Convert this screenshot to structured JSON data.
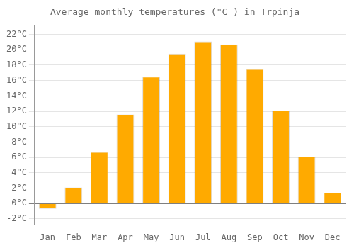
{
  "chart_data": {
    "type": "bar",
    "title": "Average monthly temperatures (°C ) in Trpinja",
    "categories": [
      "Jan",
      "Feb",
      "Mar",
      "Apr",
      "May",
      "Jun",
      "Jul",
      "Aug",
      "Sep",
      "Oct",
      "Nov",
      "Dec"
    ],
    "values": [
      -0.7,
      2.1,
      6.7,
      11.6,
      16.5,
      19.5,
      21.1,
      20.7,
      17.5,
      12.1,
      6.1,
      1.4
    ],
    "color": "#FFAA00",
    "ylim": [
      -2.8,
      23.2
    ],
    "yticks": [
      {
        "value": -2,
        "label": "-2°C"
      },
      {
        "value": 0,
        "label": "0°C"
      },
      {
        "value": 2,
        "label": "2°C"
      },
      {
        "value": 4,
        "label": "4°C"
      },
      {
        "value": 6,
        "label": "6°C"
      },
      {
        "value": 8,
        "label": "8°C"
      },
      {
        "value": 10,
        "label": "10°C"
      },
      {
        "value": 12,
        "label": "12°C"
      },
      {
        "value": 14,
        "label": "14°C"
      },
      {
        "value": 16,
        "label": "16°C"
      },
      {
        "value": 18,
        "label": "18°C"
      },
      {
        "value": 20,
        "label": "20°C"
      },
      {
        "value": 22,
        "label": "22°C"
      }
    ],
    "grid": true
  }
}
